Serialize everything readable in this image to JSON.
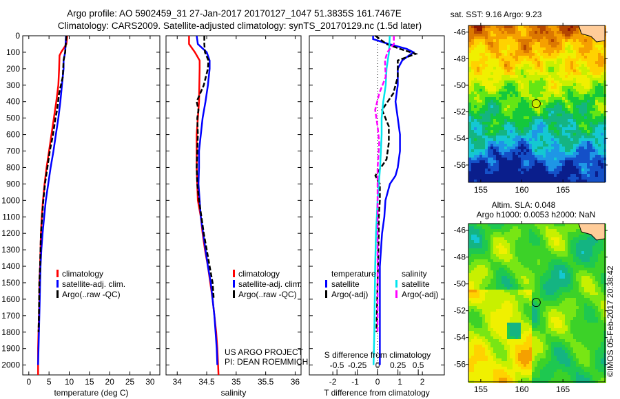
{
  "title": {
    "line1": "Argo profile: AO 5902459_31 27-Jan-2017 20170127_1047 51.3835S 161.7467E",
    "line2": "Climatology: CARS2009. Satellite-adjusted climatology: synTS_20170129.nc (1.5d later)"
  },
  "credits": {
    "line1": "US ARGO PROJECT",
    "line2": "PI: DEAN ROEMMICH"
  },
  "stamp": "©IMOS 05-Feb-2017 20:38:42",
  "colors": {
    "climatology": "#ff0000",
    "satellite": "#0000ff",
    "argo": "#000000",
    "sal_satellite": "#00e5ee",
    "sal_argo": "#ff00ff"
  },
  "chart_data": [
    {
      "type": "line",
      "xlabel": "temperature (deg C)",
      "ylabel": "",
      "xlim": [
        -1.5,
        32.4
      ],
      "ylim": [
        0,
        2060
      ],
      "xticks": [
        "0",
        "5",
        "10",
        "15",
        "20",
        "25",
        "30"
      ],
      "yticks": [
        "0",
        "100",
        "200",
        "300",
        "400",
        "500",
        "600",
        "700",
        "800",
        "900",
        "1000",
        "1100",
        "1200",
        "1300",
        "1400",
        "1500",
        "1600",
        "1700",
        "1800",
        "1900",
        "2000"
      ],
      "legend": [
        "climatology",
        "satellite-adj. clim.",
        "Argo(..raw -QC)"
      ],
      "series": [
        {
          "name": "climatology",
          "color": "#ff0000",
          "depth": [
            0,
            50,
            100,
            120,
            200,
            300,
            400,
            500,
            600,
            700,
            800,
            900,
            1000,
            1100,
            1200,
            1300,
            1400,
            1500,
            1600,
            1700,
            1800,
            1900,
            2060
          ],
          "values": [
            9.5,
            9.3,
            8.0,
            7.6,
            7.5,
            7.3,
            6.8,
            6.2,
            5.6,
            5.0,
            4.4,
            3.9,
            3.5,
            3.2,
            3.0,
            2.9,
            2.8,
            2.6,
            2.6,
            2.5,
            2.4,
            2.3,
            2.3
          ]
        },
        {
          "name": "satellite-adj. clim.",
          "color": "#0000ff",
          "depth": [
            0,
            100,
            150,
            200,
            300,
            400,
            500,
            600,
            700,
            800,
            900,
            1000,
            1100,
            1200,
            1300,
            1400,
            1500,
            1600,
            1700,
            1800,
            1900,
            2000
          ],
          "values": [
            9.2,
            9.0,
            8.6,
            8.6,
            8.2,
            7.8,
            7.3,
            6.7,
            6.1,
            5.4,
            4.8,
            4.2,
            3.8,
            3.4,
            3.1,
            2.9,
            2.8,
            2.7,
            2.6,
            2.5,
            2.4,
            2.3
          ]
        },
        {
          "name": "Argo(..raw -QC)",
          "color": "#000000",
          "dashed": true,
          "depth": [
            0,
            100,
            150,
            250,
            350,
            450,
            500,
            600,
            700,
            800,
            900,
            1000,
            1100,
            1200,
            1300,
            1400,
            1500,
            1700,
            1800
          ],
          "values": [
            9.3,
            9.0,
            8.6,
            8.4,
            7.5,
            7.0,
            6.6,
            6.0,
            5.2,
            4.6,
            4.0,
            3.6,
            3.3,
            3.0,
            2.9,
            2.8,
            2.6,
            2.5,
            2.4
          ]
        }
      ]
    },
    {
      "type": "line",
      "xlabel": "salinity",
      "xlim": [
        33.81,
        36.1
      ],
      "ylim": [
        0,
        2060
      ],
      "xticks": [
        "34",
        "34.5",
        "35",
        "35.5",
        "36"
      ],
      "legend": [
        "climatology",
        "satellite-adj. clim.",
        "Argo(..raw -QC)"
      ],
      "series": [
        {
          "name": "climatology",
          "color": "#ff0000",
          "depth": [
            0,
            50,
            100,
            150,
            200,
            400,
            500,
            600,
            800,
            1000,
            1100,
            1200,
            1300,
            1400,
            1500,
            1600,
            1700,
            1800,
            1900,
            2060
          ],
          "values": [
            34.2,
            34.2,
            34.3,
            34.38,
            34.38,
            34.37,
            34.35,
            34.33,
            34.33,
            34.35,
            34.4,
            34.43,
            34.47,
            34.52,
            34.56,
            34.6,
            34.63,
            34.66,
            34.68,
            34.7
          ]
        },
        {
          "name": "satellite-adj. clim.",
          "color": "#0000ff",
          "depth": [
            0,
            50,
            100,
            150,
            200,
            300,
            400,
            500,
            600,
            700,
            800,
            900,
            1000,
            1100,
            1200,
            1300,
            1400,
            1500,
            1600,
            1700,
            1800,
            1900,
            2000
          ],
          "values": [
            34.33,
            34.35,
            34.5,
            34.55,
            34.55,
            34.52,
            34.48,
            34.43,
            34.4,
            34.37,
            34.37,
            34.36,
            34.38,
            34.4,
            34.44,
            34.48,
            34.52,
            34.57,
            34.6,
            34.63,
            34.65,
            34.67,
            34.68
          ]
        },
        {
          "name": "Argo(..raw -QC)",
          "color": "#000000",
          "dashed": true,
          "depth": [
            0,
            50,
            100,
            150,
            200,
            300,
            400,
            450,
            500,
            600,
            700,
            800,
            900,
            1000,
            1100,
            1200,
            1300,
            1400,
            1500,
            1600
          ],
          "values": [
            34.46,
            34.46,
            34.47,
            34.53,
            34.52,
            34.45,
            34.33,
            34.36,
            34.34,
            34.35,
            34.34,
            34.33,
            34.34,
            34.37,
            34.41,
            34.45,
            34.5,
            34.55,
            34.6,
            34.62
          ]
        }
      ]
    },
    {
      "type": "line",
      "xlabel": "T difference from climatology",
      "top_label": "S difference from climatology",
      "xlim": [
        -3.05,
        2.98
      ],
      "s_per_t": 0.2755,
      "ylim": [
        0,
        2060
      ],
      "xticks": [
        "-2",
        "-1",
        "0",
        "1",
        "2"
      ],
      "sticks": [
        "-0.5",
        "-0.25",
        "0",
        "0.25",
        "0.5"
      ],
      "legend_temp_title": "temperature",
      "legend_sal_title": "salinity",
      "legend": [
        "satellite",
        "Argo(-adj)",
        "satellite",
        "Argo(-adj)"
      ],
      "series": [
        {
          "name": "temperature satellite",
          "units": "T",
          "color": "#0000ff",
          "depth": [
            0,
            20,
            50,
            80,
            100,
            150,
            200,
            300,
            400,
            500,
            600,
            700,
            800,
            850,
            900,
            1000,
            1100,
            1200,
            1300,
            1400,
            1500,
            2000
          ],
          "values": [
            -0.2,
            -0.2,
            0.5,
            1.3,
            1.6,
            1.1,
            0.9,
            0.9,
            0.8,
            0.9,
            1.0,
            1.0,
            0.9,
            0.8,
            0.55,
            0.35,
            0.3,
            0.2,
            0.15,
            0.1,
            0.1,
            0.1
          ]
        },
        {
          "name": "temperature Argo(-adj)",
          "units": "T",
          "color": "#000000",
          "dashed": true,
          "depth": [
            0,
            50,
            80,
            110,
            150,
            250,
            350,
            450,
            550,
            650,
            750,
            850,
            900,
            1000,
            1100,
            1200,
            1500,
            1800
          ],
          "values": [
            -0.1,
            0.4,
            1.0,
            1.7,
            0.9,
            0.9,
            0.7,
            0.2,
            0.5,
            0.5,
            0.4,
            -0.1,
            0.1,
            0.1,
            0.05,
            0.05,
            0.0,
            -0.05
          ]
        },
        {
          "name": "salinity satellite",
          "units": "S",
          "color": "#00e5ee",
          "depth": [
            0,
            100,
            200,
            300,
            400,
            500,
            600,
            700,
            800,
            1000,
            1100,
            1200,
            1400,
            1800,
            2000
          ],
          "values": [
            0.15,
            0.14,
            0.11,
            0.1,
            0.07,
            0.05,
            0.05,
            0.04,
            0.03,
            0.0,
            -0.01,
            -0.02,
            -0.03,
            -0.04,
            -0.05
          ]
        },
        {
          "name": "salinity Argo(-adj)",
          "units": "S",
          "color": "#ff00ff",
          "dashed": true,
          "depth": [
            0,
            50,
            100,
            150,
            250,
            350,
            450,
            550,
            650,
            800,
            900,
            1100,
            1500,
            1800
          ],
          "values": [
            0.2,
            0.2,
            0.12,
            0.09,
            0.1,
            0.02,
            -0.03,
            0.0,
            0.02,
            0.0,
            0.0,
            0.0,
            0.0,
            0.0
          ]
        }
      ]
    },
    {
      "type": "heatmap",
      "title": "sat. SST: 9.16 Argo: 9.23",
      "xticks": [
        "155",
        "160",
        "165"
      ],
      "yticks": [
        "-46",
        "-48",
        "-50",
        "-52",
        "-54",
        "-56"
      ],
      "lon_range": [
        153.5,
        170.1
      ],
      "lat_range": [
        -57.3,
        -45.5
      ],
      "marker": {
        "lon": 161.7467,
        "lat": -51.3835
      }
    },
    {
      "type": "heatmap",
      "title_line1": "Altim. SLA: 0.048",
      "title_line2": "Argo h1000: 0.0053 h2000: NaN",
      "xticks": [
        "155",
        "160",
        "165"
      ],
      "yticks": [
        "-46",
        "-48",
        "-50",
        "-52",
        "-54",
        "-56"
      ],
      "lon_range": [
        153.5,
        170.1
      ],
      "lat_range": [
        -57.3,
        -45.5
      ],
      "marker": {
        "lon": 161.7467,
        "lat": -51.3835
      }
    }
  ]
}
